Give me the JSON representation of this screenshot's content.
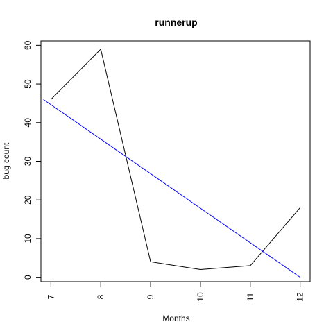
{
  "chart_data": {
    "type": "line",
    "title": "runnerup",
    "xlabel": "Months",
    "ylabel": "bug count",
    "x": [
      7,
      8,
      9,
      10,
      11,
      12
    ],
    "series": [
      {
        "values": [
          46,
          59,
          4,
          2,
          3,
          18
        ],
        "color": "#000000"
      }
    ],
    "trend_line": {
      "x": [
        6.85,
        12
      ],
      "y": [
        46,
        0
      ],
      "color": "#0000ff"
    },
    "xlim": [
      6.8,
      12.2
    ],
    "ylim": [
      -1.14,
      61.14
    ],
    "x_ticks": [
      7,
      8,
      9,
      10,
      11,
      12
    ],
    "y_ticks": [
      0,
      10,
      20,
      30,
      40,
      50,
      60
    ],
    "x_tick_labels": [
      "7",
      "8",
      "9",
      "10",
      "11",
      "12"
    ],
    "y_tick_labels": [
      "0",
      "10",
      "20",
      "30",
      "40",
      "50",
      "60"
    ],
    "grid": false,
    "legend": "none"
  }
}
